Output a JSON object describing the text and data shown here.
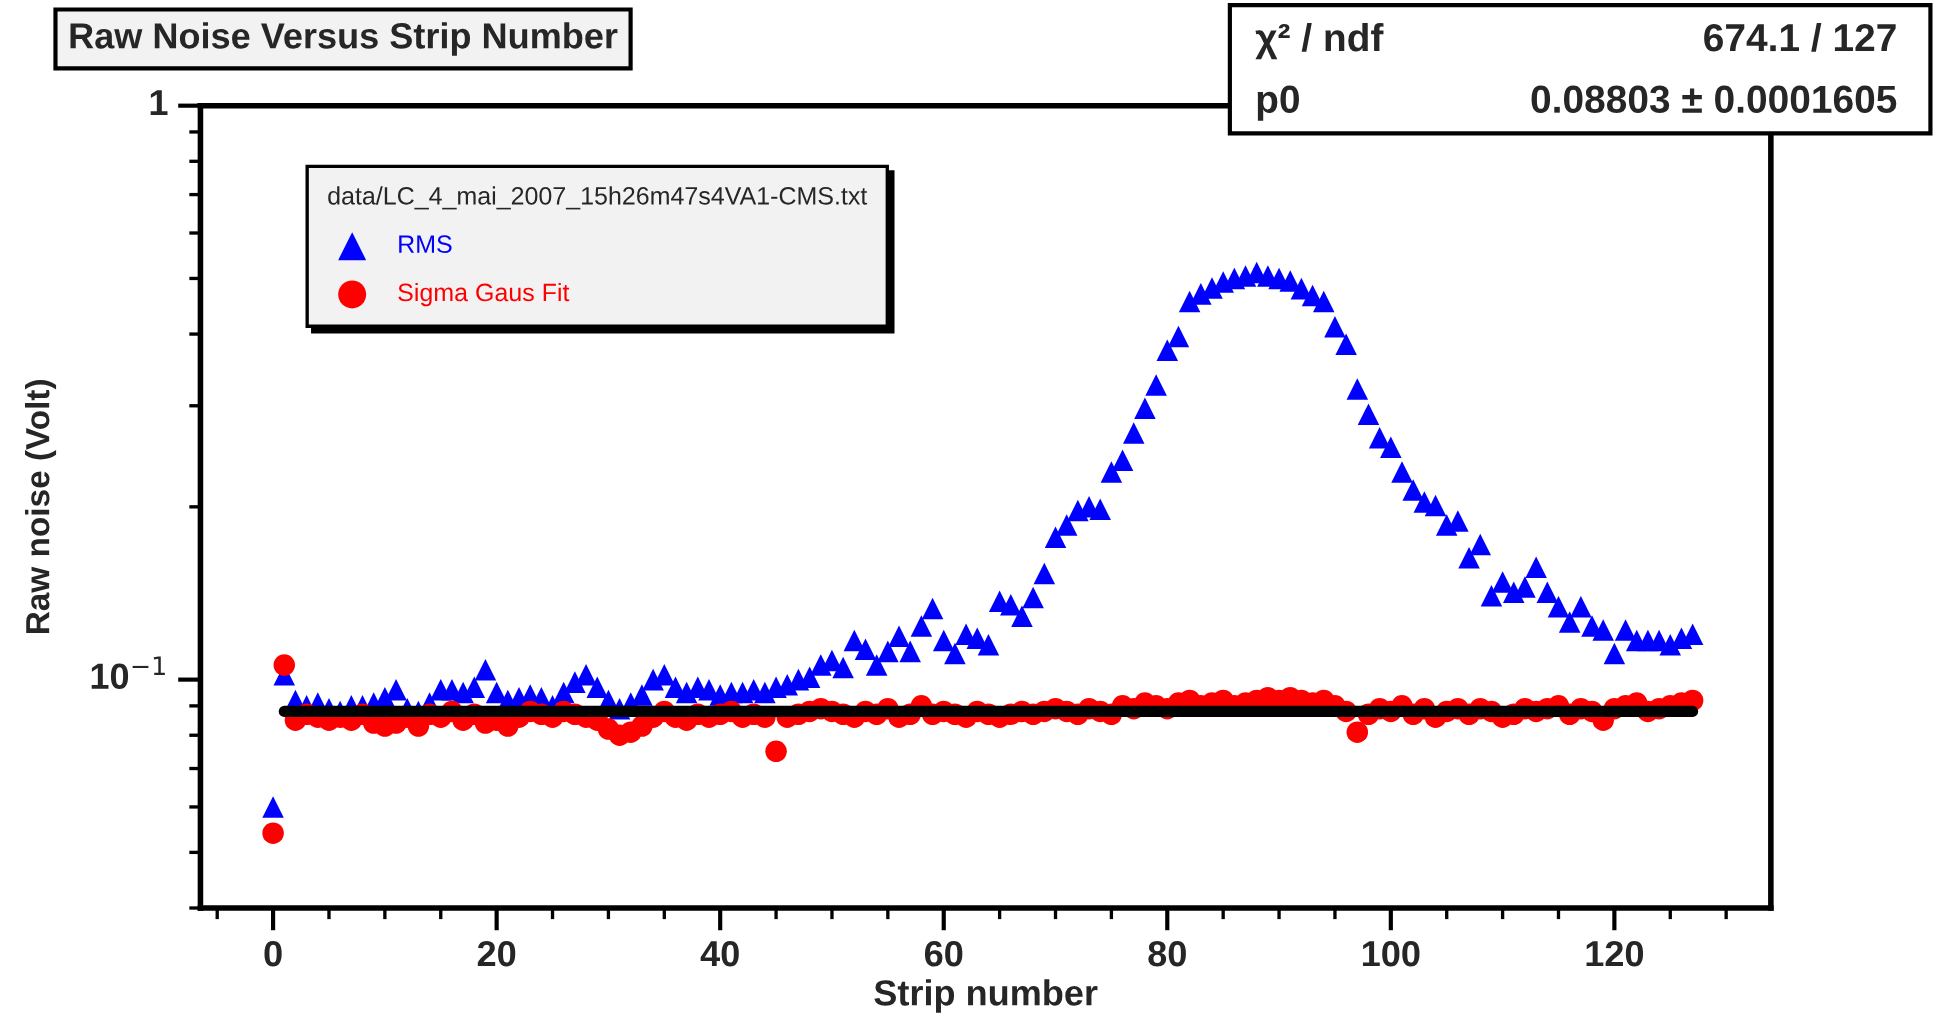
{
  "chart_data": {
    "type": "scatter",
    "title": "Raw Noise Versus Strip Number",
    "xlabel": "Strip number",
    "ylabel": "Raw noise (Volt)",
    "legend_title": "data/LC_4_mai_2007_15h26m47s4VA1-CMS.txt",
    "annotations": [
      "χ² / ndf",
      "674.1 / 127",
      "p0",
      "0.08803 ± 0.0001605"
    ],
    "log": "y",
    "xlim": [
      -6.5,
      134
    ],
    "ylim": [
      0.04,
      1
    ],
    "xticks": [
      0,
      20,
      40,
      60,
      80,
      100,
      120
    ],
    "yticks": [
      {
        "value": 1,
        "label": "1"
      },
      {
        "value": 0.1,
        "label": "10$^{−1}$"
      }
    ],
    "legend": "top left",
    "grid": false,
    "x": [
      0,
      1,
      2,
      3,
      4,
      5,
      6,
      7,
      8,
      9,
      10,
      11,
      12,
      13,
      14,
      15,
      16,
      17,
      18,
      19,
      20,
      21,
      22,
      23,
      24,
      25,
      26,
      27,
      28,
      29,
      30,
      31,
      32,
      33,
      34,
      35,
      36,
      37,
      38,
      39,
      40,
      41,
      42,
      43,
      44,
      45,
      46,
      47,
      48,
      49,
      50,
      51,
      52,
      53,
      54,
      55,
      56,
      57,
      58,
      59,
      60,
      61,
      62,
      63,
      64,
      65,
      66,
      67,
      68,
      69,
      70,
      71,
      72,
      73,
      74,
      75,
      76,
      77,
      78,
      79,
      80,
      81,
      82,
      83,
      84,
      85,
      86,
      87,
      88,
      89,
      90,
      91,
      92,
      93,
      94,
      95,
      96,
      97,
      98,
      99,
      100,
      101,
      102,
      103,
      104,
      105,
      106,
      107,
      108,
      109,
      110,
      111,
      112,
      113,
      114,
      115,
      116,
      117,
      118,
      119,
      120,
      121,
      122,
      123,
      124,
      125,
      126,
      127
    ],
    "series": [
      {
        "name": "RMS",
        "marker": "triangle",
        "color": "#0000ff",
        "values": [
          0.06,
          0.102,
          0.092,
          0.09,
          0.091,
          0.089,
          0.088,
          0.09,
          0.09,
          0.091,
          0.093,
          0.096,
          0.089,
          0.088,
          0.091,
          0.096,
          0.096,
          0.095,
          0.097,
          0.104,
          0.095,
          0.092,
          0.093,
          0.094,
          0.093,
          0.09,
          0.095,
          0.099,
          0.102,
          0.097,
          0.092,
          0.089,
          0.091,
          0.094,
          0.1,
          0.102,
          0.097,
          0.095,
          0.097,
          0.096,
          0.094,
          0.095,
          0.095,
          0.096,
          0.095,
          0.097,
          0.098,
          0.1,
          0.101,
          0.106,
          0.108,
          0.105,
          0.117,
          0.113,
          0.106,
          0.112,
          0.119,
          0.112,
          0.124,
          0.133,
          0.117,
          0.111,
          0.12,
          0.118,
          0.115,
          0.137,
          0.135,
          0.129,
          0.139,
          0.153,
          0.177,
          0.186,
          0.197,
          0.2,
          0.198,
          0.23,
          0.241,
          0.269,
          0.297,
          0.326,
          0.375,
          0.396,
          0.456,
          0.47,
          0.481,
          0.493,
          0.5,
          0.505,
          0.512,
          0.505,
          0.5,
          0.495,
          0.48,
          0.467,
          0.456,
          0.412,
          0.384,
          0.321,
          0.29,
          0.264,
          0.254,
          0.23,
          0.214,
          0.204,
          0.201,
          0.186,
          0.189,
          0.163,
          0.172,
          0.14,
          0.148,
          0.142,
          0.145,
          0.157,
          0.142,
          0.134,
          0.126,
          0.134,
          0.124,
          0.122,
          0.111,
          0.122,
          0.117,
          0.117,
          0.117,
          0.115,
          0.118,
          0.12
        ]
      },
      {
        "name": "Sigma Gaus Fit",
        "marker": "circle",
        "color": "#ff0000",
        "values": [
          0.054,
          0.106,
          0.085,
          0.087,
          0.086,
          0.085,
          0.086,
          0.085,
          0.087,
          0.084,
          0.083,
          0.084,
          0.086,
          0.083,
          0.087,
          0.086,
          0.088,
          0.085,
          0.087,
          0.084,
          0.085,
          0.083,
          0.086,
          0.088,
          0.087,
          0.086,
          0.088,
          0.087,
          0.086,
          0.085,
          0.082,
          0.08,
          0.081,
          0.083,
          0.086,
          0.088,
          0.086,
          0.085,
          0.087,
          0.086,
          0.087,
          0.088,
          0.086,
          0.087,
          0.086,
          0.075,
          0.086,
          0.087,
          0.088,
          0.089,
          0.088,
          0.087,
          0.086,
          0.088,
          0.087,
          0.089,
          0.086,
          0.087,
          0.09,
          0.087,
          0.088,
          0.087,
          0.086,
          0.088,
          0.087,
          0.086,
          0.087,
          0.088,
          0.087,
          0.088,
          0.089,
          0.088,
          0.087,
          0.089,
          0.088,
          0.087,
          0.09,
          0.089,
          0.091,
          0.09,
          0.089,
          0.091,
          0.092,
          0.09,
          0.091,
          0.092,
          0.09,
          0.091,
          0.092,
          0.093,
          0.092,
          0.093,
          0.092,
          0.091,
          0.092,
          0.09,
          0.088,
          0.081,
          0.087,
          0.089,
          0.088,
          0.09,
          0.087,
          0.089,
          0.086,
          0.088,
          0.089,
          0.087,
          0.089,
          0.088,
          0.086,
          0.087,
          0.089,
          0.088,
          0.089,
          0.09,
          0.087,
          0.089,
          0.088,
          0.085,
          0.089,
          0.09,
          0.091,
          0.088,
          0.089,
          0.09,
          0.091,
          0.092
        ]
      },
      {
        "type": "line",
        "marker": "none",
        "line_style": "solid",
        "color": "#000000",
        "x": [
          1,
          127
        ],
        "values": [
          0.08803,
          0.08803
        ]
      }
    ]
  }
}
